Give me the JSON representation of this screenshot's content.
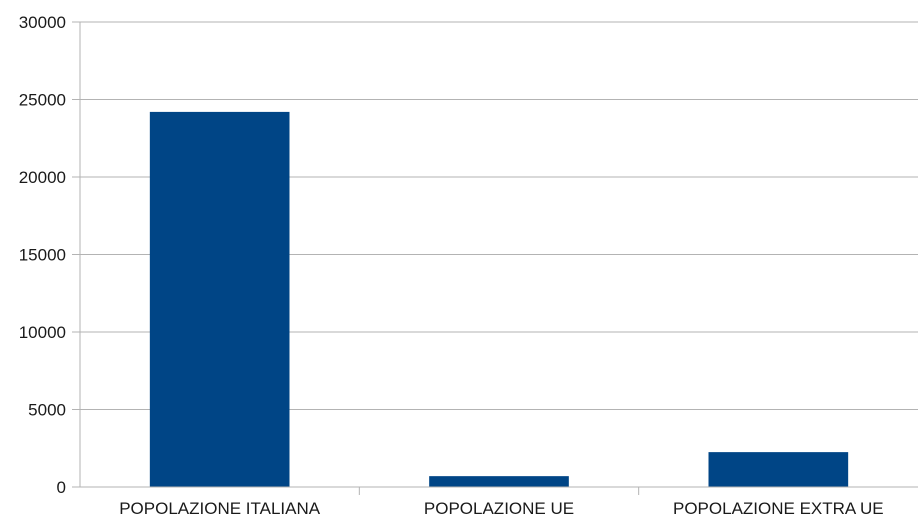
{
  "chart_data": {
    "type": "bar",
    "categories": [
      "POPOLAZIONE ITALIANA",
      "POPOLAZIONE UE",
      "POPOLAZIONE EXTRA UE"
    ],
    "values": [
      24200,
      700,
      2250
    ],
    "ylim": [
      0,
      30000
    ],
    "yticks": [
      "0",
      "5000",
      "10000",
      "15000",
      "20000",
      "25000",
      "30000"
    ],
    "grid": true,
    "colors": {
      "bar": "#004586",
      "grid": "#b3b3b3",
      "axis": "#b3b3b3"
    }
  }
}
